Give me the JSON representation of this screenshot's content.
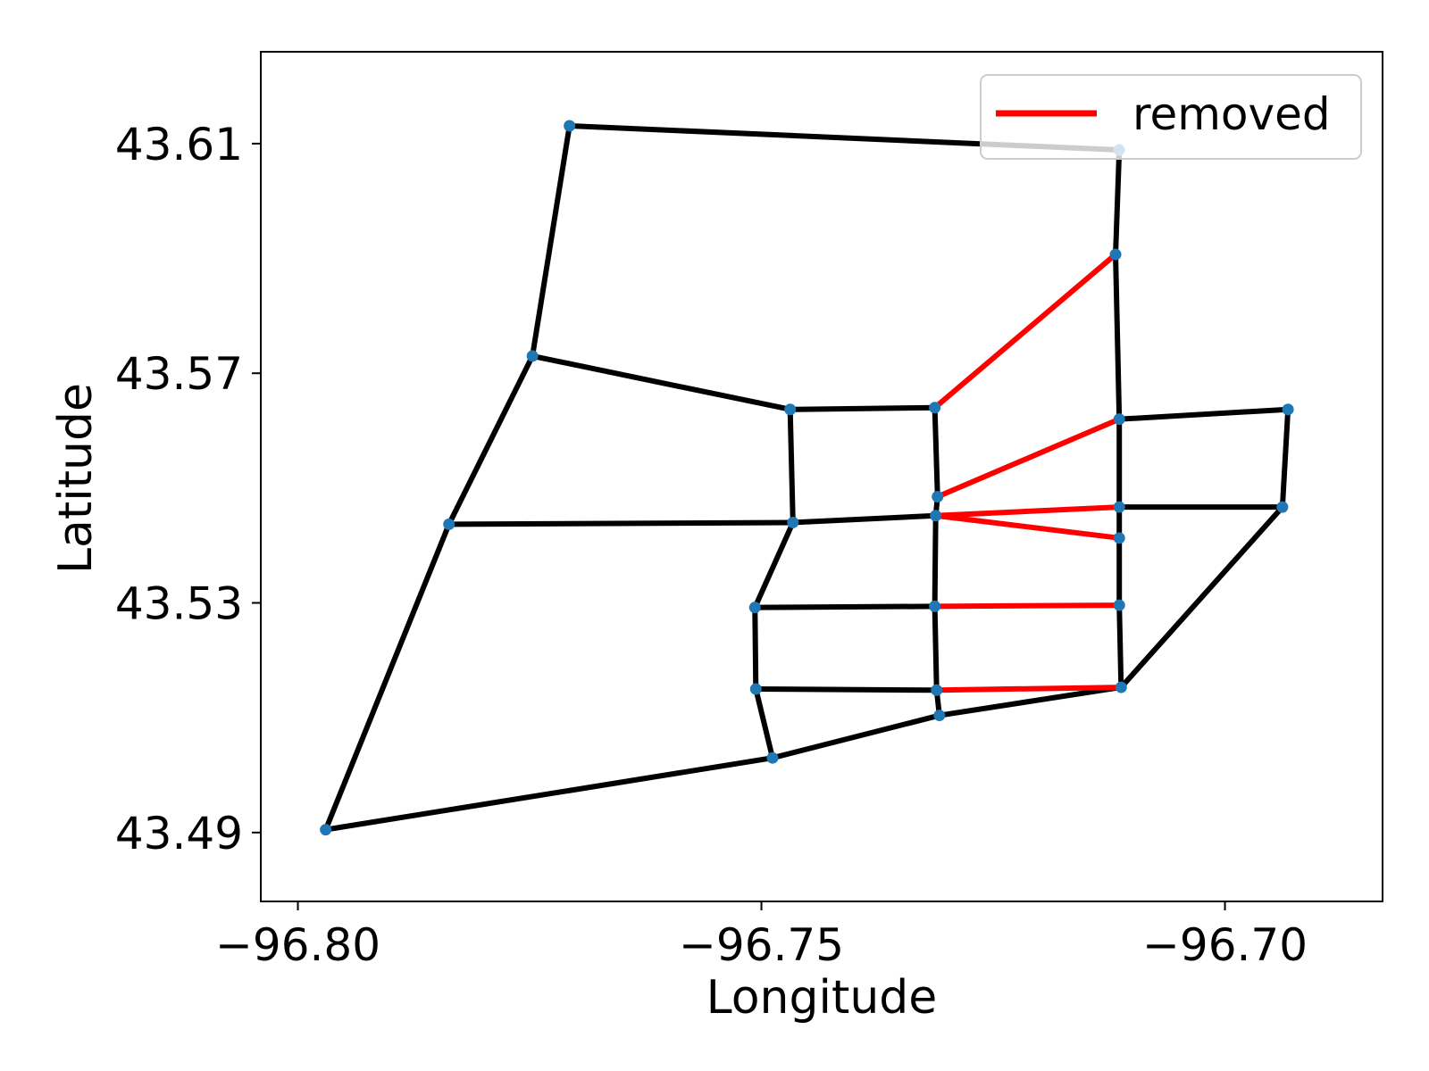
{
  "chart_data": {
    "type": "line",
    "xlabel": "Longitude",
    "ylabel": "Latitude",
    "xlim": [
      -96.804,
      -96.683
    ],
    "ylim": [
      43.478,
      43.626
    ],
    "x_ticks": [
      -96.8,
      -96.75,
      -96.7
    ],
    "x_tick_labels": [
      "−96.80",
      "−96.75",
      "−96.70"
    ],
    "y_ticks": [
      43.49,
      43.53,
      43.57,
      43.61
    ],
    "y_tick_labels": [
      "43.49",
      "43.53",
      "43.57",
      "43.61"
    ],
    "grid": false,
    "legend": {
      "placement": "top-right",
      "entries": [
        {
          "label": "removed",
          "color": "#ff0000"
        }
      ]
    },
    "colors": {
      "edge": "#000000",
      "removed": "#ff0000",
      "node": "#1f77b4"
    },
    "nodes": [
      {
        "id": "A",
        "lon": -96.7707,
        "lat": 43.6131
      },
      {
        "id": "B",
        "lon": -96.7114,
        "lat": 43.6089
      },
      {
        "id": "C",
        "lon": -96.7747,
        "lat": 43.573
      },
      {
        "id": "D",
        "lon": -96.7469,
        "lat": 43.5637
      },
      {
        "id": "E",
        "lon": -96.7313,
        "lat": 43.564
      },
      {
        "id": "F",
        "lon": -96.7118,
        "lat": 43.5907
      },
      {
        "id": "G",
        "lon": -96.7114,
        "lat": 43.562
      },
      {
        "id": "H",
        "lon": -96.6932,
        "lat": 43.5637
      },
      {
        "id": "I",
        "lon": -96.731,
        "lat": 43.5485
      },
      {
        "id": "J",
        "lon": -96.7114,
        "lat": 43.5467
      },
      {
        "id": "K",
        "lon": -96.6938,
        "lat": 43.5467
      },
      {
        "id": "L",
        "lon": -96.7114,
        "lat": 43.5413
      },
      {
        "id": "M",
        "lon": -96.7312,
        "lat": 43.5452
      },
      {
        "id": "N",
        "lon": -96.7466,
        "lat": 43.544
      },
      {
        "id": "O",
        "lon": -96.7837,
        "lat": 43.5437
      },
      {
        "id": "P",
        "lon": -96.7507,
        "lat": 43.5292
      },
      {
        "id": "Q",
        "lon": -96.7313,
        "lat": 43.5294
      },
      {
        "id": "R",
        "lon": -96.7114,
        "lat": 43.5296
      },
      {
        "id": "S",
        "lon": -96.7506,
        "lat": 43.515
      },
      {
        "id": "T",
        "lon": -96.7311,
        "lat": 43.5148
      },
      {
        "id": "U",
        "lon": -96.7112,
        "lat": 43.5153
      },
      {
        "id": "V",
        "lon": -96.7308,
        "lat": 43.5104
      },
      {
        "id": "W",
        "lon": -96.7488,
        "lat": 43.503
      },
      {
        "id": "X",
        "lon": -96.797,
        "lat": 43.4905
      }
    ],
    "series": [
      {
        "name": "removed",
        "color": "#ff0000",
        "edges": [
          [
            "E",
            "F"
          ],
          [
            "I",
            "G"
          ],
          [
            "M",
            "J"
          ],
          [
            "M",
            "L"
          ],
          [
            "Q",
            "R"
          ],
          [
            "T",
            "U"
          ]
        ]
      },
      {
        "color": "#000000",
        "edges": [
          [
            "A",
            "B"
          ],
          [
            "B",
            "F"
          ],
          [
            "F",
            "G"
          ],
          [
            "G",
            "J"
          ],
          [
            "J",
            "L"
          ],
          [
            "L",
            "R"
          ],
          [
            "R",
            "U"
          ],
          [
            "G",
            "H"
          ],
          [
            "H",
            "K"
          ],
          [
            "J",
            "K"
          ],
          [
            "K",
            "U"
          ],
          [
            "A",
            "C"
          ],
          [
            "C",
            "D"
          ],
          [
            "D",
            "E"
          ],
          [
            "E",
            "I"
          ],
          [
            "I",
            "M"
          ],
          [
            "M",
            "Q"
          ],
          [
            "Q",
            "T"
          ],
          [
            "T",
            "V"
          ],
          [
            "C",
            "O"
          ],
          [
            "O",
            "N"
          ],
          [
            "N",
            "M"
          ],
          [
            "D",
            "N"
          ],
          [
            "N",
            "P"
          ],
          [
            "P",
            "Q"
          ],
          [
            "P",
            "S"
          ],
          [
            "S",
            "T"
          ],
          [
            "S",
            "W"
          ],
          [
            "W",
            "V"
          ],
          [
            "V",
            "U"
          ],
          [
            "O",
            "X"
          ],
          [
            "X",
            "W"
          ]
        ]
      }
    ]
  }
}
